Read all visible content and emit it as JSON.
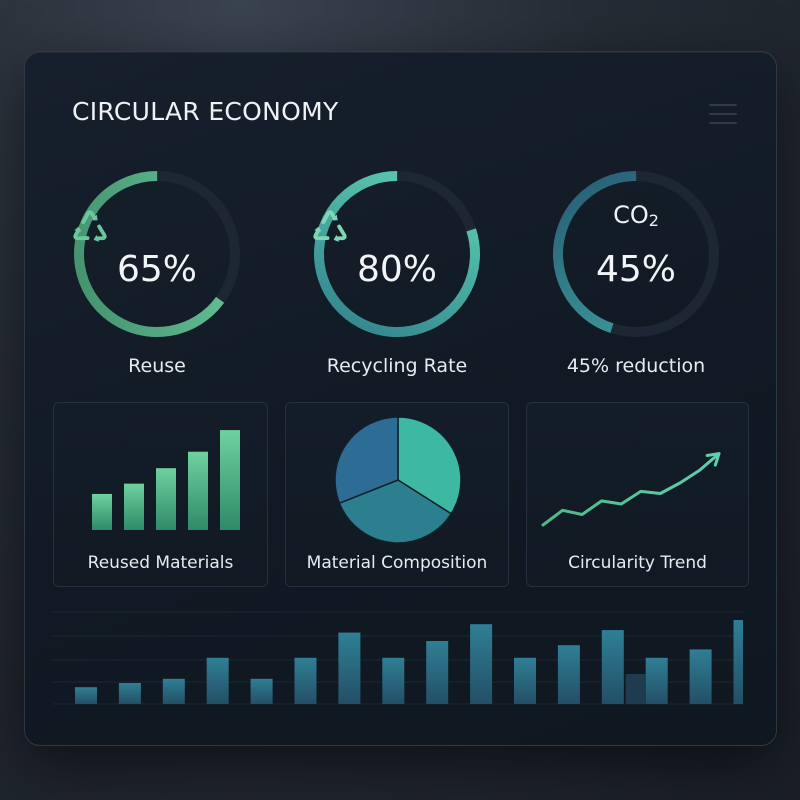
{
  "header": {
    "title": "CIRCULAR ECONOMY",
    "menu_icon": "hamburger-menu-icon"
  },
  "gauges": [
    {
      "id": "reuse",
      "icon": "recycle-icon",
      "value_text": "65%",
      "percent": 65,
      "label": "Reuse",
      "color_start": "#3e8c68",
      "color_end": "#6cc9a0"
    },
    {
      "id": "recycling",
      "icon": "recycle-icon",
      "value_text": "80%",
      "percent": 80,
      "label": "Recycling Rate",
      "color_start": "#2f7f8c",
      "color_end": "#62d3b3"
    },
    {
      "id": "co2",
      "icon_text": "CO",
      "icon_sub": "2",
      "value_text": "45%",
      "percent": 45,
      "label": "45% reduction",
      "color_start": "#275a73",
      "color_end": "#3fa2a0"
    }
  ],
  "cards": {
    "reused_materials": {
      "label": "Reused Materials"
    },
    "material_composition": {
      "label": "Material Composition"
    },
    "circularity_trend": {
      "label": "Circularity Trend"
    }
  },
  "colors": {
    "track": "#1d2733",
    "green": "#5fbf8c",
    "teal": "#2f8f98",
    "blue": "#2a6a86"
  },
  "chart_data": [
    {
      "type": "bar",
      "name": "reused-materials",
      "values": [
        3.5,
        4.5,
        6.0,
        7.6,
        9.7
      ]
    },
    {
      "type": "pie",
      "name": "material-composition",
      "values": [
        34,
        35,
        31
      ],
      "colors": [
        "#3cb8a3",
        "#2b7f8e",
        "#2d6d95"
      ]
    },
    {
      "type": "line",
      "name": "circularity-trend",
      "values": [
        2.0,
        3.4,
        3.0,
        4.3,
        4.0,
        5.2,
        5.0,
        6.0,
        7.2,
        8.8
      ]
    },
    {
      "type": "bar",
      "name": "bottom-bars",
      "values": [
        2.0,
        2.5,
        3.0,
        5.5,
        3.0,
        5.5,
        8.5,
        5.5,
        7.5,
        9.5,
        5.5,
        7.0,
        8.8,
        5.5,
        6.5,
        10.0
      ],
      "overlay": [
        0,
        0,
        0,
        0,
        0,
        0,
        0,
        0,
        0,
        0,
        0,
        0,
        0,
        5.0,
        0,
        0
      ]
    }
  ]
}
